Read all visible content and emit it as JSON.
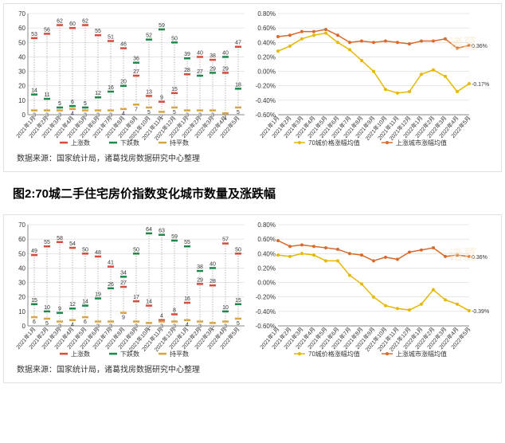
{
  "sourceText": "数据来源：国家统计局，诸葛找房数据研究中心整理",
  "title2": "图2:70城二手住宅房价指数变化城市数量及涨跌幅",
  "months": [
    "2021年1月",
    "2021年2月",
    "2021年3月",
    "2021年4月",
    "2021年5月",
    "2021年6月",
    "2021年7月",
    "2021年8月",
    "2021年9月",
    "2021年10月",
    "2021年11月",
    "2021年12月",
    "2022年1月",
    "2022年2月",
    "2022年3月",
    "2022年4月",
    "2022年5月"
  ],
  "colors": {
    "up": "#d94b3a",
    "down": "#1a8a4a",
    "flat": "#d9a441",
    "avg70": "#e6b800",
    "avgUp": "#d96a2b",
    "axis": "#888",
    "grid": "#cfcfcf",
    "dash": "#999"
  },
  "fig1": {
    "left": {
      "ylim": [
        0,
        70
      ],
      "ystep": 10,
      "up": [
        53,
        56,
        62,
        60,
        62,
        55,
        51,
        46,
        27,
        13,
        9,
        15,
        28,
        40,
        38,
        29,
        47
      ],
      "down": [
        14,
        11,
        5,
        6,
        5,
        12,
        16,
        20,
        36,
        52,
        59,
        50,
        39,
        27,
        29,
        40,
        18
      ],
      "flat": [
        3,
        3,
        3,
        4,
        3,
        3,
        3,
        4,
        7,
        5,
        2,
        5,
        3,
        3,
        3,
        1,
        5
      ],
      "legend": [
        "上涨数",
        "下跌数",
        "持平数"
      ]
    },
    "right": {
      "ylim": [
        -0.6,
        0.8
      ],
      "ystep": 0.2,
      "avg70": [
        0.28,
        0.35,
        0.45,
        0.5,
        0.53,
        0.4,
        0.3,
        0.15,
        0.0,
        -0.25,
        -0.3,
        -0.28,
        -0.04,
        0.02,
        -0.07,
        -0.28,
        -0.17
      ],
      "avgUp": [
        0.48,
        0.5,
        0.55,
        0.55,
        0.58,
        0.5,
        0.4,
        0.42,
        0.4,
        0.42,
        0.4,
        0.38,
        0.42,
        0.42,
        0.45,
        0.32,
        0.36
      ],
      "labels": {
        "avg70_last": "-0.17%",
        "avgUp_last": "0.36%"
      },
      "legend": [
        "70城价格涨幅均值",
        "上涨城市涨幅均值"
      ]
    }
  },
  "fig2": {
    "left": {
      "ylim": [
        0,
        70
      ],
      "ystep": 10,
      "up": [
        49,
        55,
        58,
        54,
        50,
        48,
        41,
        27,
        17,
        14,
        4,
        8,
        16,
        29,
        28,
        57,
        50
      ],
      "down": [
        15,
        10,
        9,
        12,
        14,
        19,
        26,
        34,
        50,
        64,
        63,
        59,
        55,
        38,
        40,
        10,
        15
      ],
      "flat": [
        6,
        5,
        3,
        4,
        6,
        3,
        3,
        9,
        3,
        2,
        3,
        3,
        4,
        3,
        2,
        3,
        5
      ],
      "legend": [
        "上涨数",
        "下跌数",
        "持平数"
      ]
    },
    "right": {
      "ylim": [
        -0.6,
        0.8
      ],
      "ystep": 0.2,
      "avg70": [
        0.38,
        0.36,
        0.4,
        0.38,
        0.3,
        0.3,
        0.1,
        -0.02,
        -0.2,
        -0.32,
        -0.36,
        -0.38,
        -0.3,
        -0.1,
        -0.24,
        -0.3,
        -0.39
      ],
      "avgUp": [
        0.58,
        0.5,
        0.52,
        0.5,
        0.48,
        0.46,
        0.4,
        0.38,
        0.3,
        0.35,
        0.32,
        0.42,
        0.45,
        0.48,
        0.36,
        0.38,
        0.36
      ],
      "labels": {
        "avg70_last": "-0.39%",
        "avgUp_last": "0.36%"
      },
      "legend": [
        "70城价格涨幅均值",
        "上涨城市涨幅均值"
      ]
    }
  }
}
